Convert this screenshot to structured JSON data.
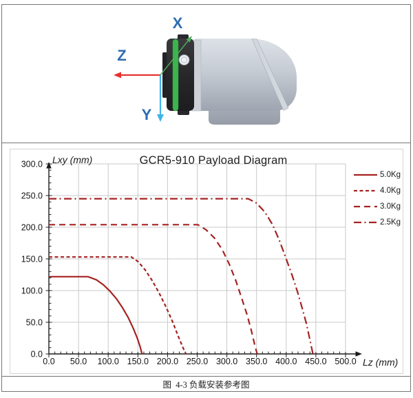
{
  "robot_figure": {
    "axis_labels": {
      "x": "X",
      "y": "Y",
      "z": "Z"
    },
    "colors": {
      "x_axis": "#4fae58",
      "y_axis": "#3fb4e9",
      "z_axis": "#e7322b",
      "label": "#2d6cb2",
      "body": "#c3c9d2",
      "flange": "#2b2b2e",
      "ring": "#3cb54d"
    }
  },
  "chart_data": {
    "type": "line",
    "title": "GCR5-910 Payload Diagram",
    "xlabel": "Lz (mm)",
    "ylabel": "Lxy (mm)",
    "xlim": [
      0,
      500
    ],
    "ylim": [
      0,
      300
    ],
    "xticks": [
      "0.0",
      "50.0",
      "100.0",
      "150.0",
      "200.0",
      "250.0",
      "300.0",
      "350.0",
      "400.0",
      "450.0",
      "500.0"
    ],
    "yticks": [
      "0.0",
      "50.0",
      "100.0",
      "150.0",
      "200.0",
      "250.0",
      "300.0"
    ],
    "major_tick_step": 50,
    "minor_tick_step": 10,
    "grid": true,
    "legend_position": "top-right",
    "line_color": "#a52221",
    "series": [
      {
        "name": "5.0Kg",
        "dash": "solid",
        "flat_level": 122,
        "flat_until": 66,
        "zero_at": 157,
        "points": [
          [
            0,
            122
          ],
          [
            66,
            122
          ],
          [
            80,
            117
          ],
          [
            92,
            109
          ],
          [
            103,
            99
          ],
          [
            114,
            87
          ],
          [
            124,
            73
          ],
          [
            134,
            57
          ],
          [
            142,
            41
          ],
          [
            149,
            25
          ],
          [
            154,
            11
          ],
          [
            157,
            0
          ]
        ]
      },
      {
        "name": "4.0Kg",
        "dash": "dash-small",
        "flat_level": 153,
        "flat_until": 139,
        "zero_at": 231,
        "points": [
          [
            0,
            153
          ],
          [
            139,
            153
          ],
          [
            150,
            146
          ],
          [
            162,
            133
          ],
          [
            174,
            116
          ],
          [
            186,
            96
          ],
          [
            197,
            75
          ],
          [
            208,
            52
          ],
          [
            218,
            28
          ],
          [
            226,
            10
          ],
          [
            231,
            0
          ]
        ]
      },
      {
        "name": "3.0Kg",
        "dash": "dash-medium",
        "flat_level": 204,
        "flat_until": 251,
        "zero_at": 351,
        "points": [
          [
            0,
            204
          ],
          [
            251,
            204
          ],
          [
            265,
            196
          ],
          [
            279,
            183
          ],
          [
            292,
            165
          ],
          [
            304,
            142
          ],
          [
            315,
            116
          ],
          [
            325,
            88
          ],
          [
            334,
            62
          ],
          [
            341,
            38
          ],
          [
            347,
            14
          ],
          [
            351,
            0
          ]
        ]
      },
      {
        "name": "2.5Kg",
        "dash": "dash-dot",
        "flat_level": 245,
        "flat_until": 336,
        "zero_at": 445,
        "points": [
          [
            0,
            245
          ],
          [
            336,
            245
          ],
          [
            350,
            238
          ],
          [
            364,
            224
          ],
          [
            377,
            204
          ],
          [
            389,
            178
          ],
          [
            400,
            150
          ],
          [
            410,
            124
          ],
          [
            419,
            98
          ],
          [
            427,
            72
          ],
          [
            434,
            48
          ],
          [
            440,
            22
          ],
          [
            445,
            0
          ]
        ]
      }
    ]
  },
  "caption": {
    "text": "图  4-3 负载安装参考图"
  }
}
